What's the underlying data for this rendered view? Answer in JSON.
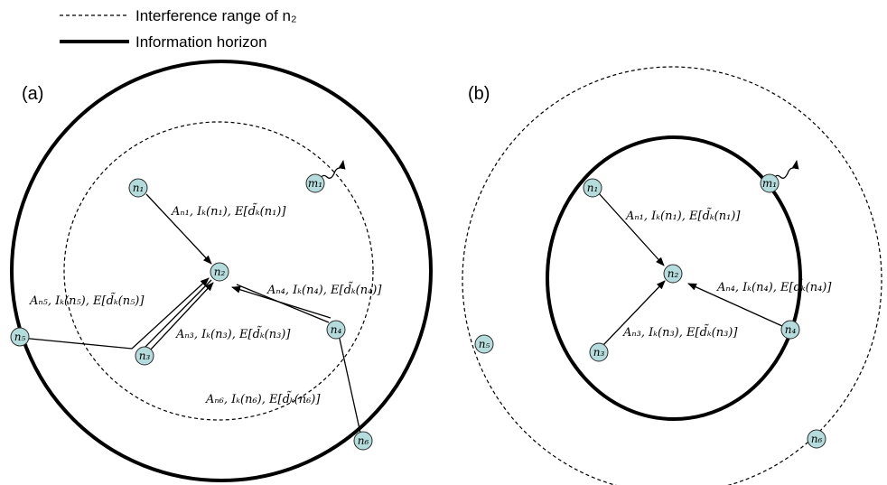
{
  "legend": {
    "dashed_label": "Interference range of n₂",
    "thick_label": "Information horizon"
  },
  "panels": {
    "a": {
      "label": "(a)",
      "nodes": {
        "n1": "n₁",
        "n2": "n₂",
        "n3": "n₃",
        "n4": "n₄",
        "n5": "n₅",
        "n6": "n₆",
        "m1": "m₁"
      },
      "annotations": {
        "from_n1": "Aₙ₁, Iₖ(n₁), E[d̃ₖ(n₁)]",
        "from_n4": "Aₙ₄, Iₖ(n₄), E[d̃ₖ(n₄)]",
        "from_n5": "Aₙ₅, Iₖ(n₅), E[d̃ₖ(n₅)]",
        "from_n3": "Aₙ₃, Iₖ(n₃), E[d̃ₖ(n₃)]",
        "from_n6": "Aₙ₆, Iₖ(n₆), E[d̃ₖ(n₆)]"
      }
    },
    "b": {
      "label": "(b)",
      "nodes": {
        "n1": "n₁",
        "n2": "n₂",
        "n3": "n₃",
        "n4": "n₄",
        "n5": "n₅",
        "n6": "n₆",
        "m1": "m₁"
      },
      "annotations": {
        "from_n1": "Aₙ₁, Iₖ(n₁), E[d̃ₖ(n₁)]",
        "from_n4": "Aₙ₄, Iₖ(n₄), E[d̃ₖ(n₄)]",
        "from_n3": "Aₙ₃, Iₖ(n₃), E[d̃ₖ(n₃)]"
      }
    }
  }
}
